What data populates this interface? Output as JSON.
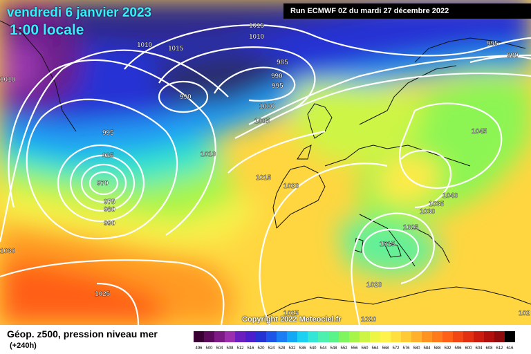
{
  "map": {
    "date_line": "vendredi 6 janvier 2023",
    "time_line": "1:00 locale",
    "run_label": "Run ECMWF 0Z du mardi 27 décembre 2022",
    "copyright": "Copyright 2022 Meteociel.fr",
    "legend_title": "Géop. z500, pression niveau mer",
    "legend_sub": "(+240h)",
    "scale_values": [
      "496",
      "500",
      "504",
      "508",
      "512",
      "516",
      "520",
      "524",
      "528",
      "532",
      "536",
      "540",
      "544",
      "548",
      "552",
      "556",
      "560",
      "564",
      "568",
      "572",
      "576",
      "580",
      "584",
      "588",
      "592",
      "596",
      "600",
      "604",
      "608",
      "612",
      "616"
    ],
    "scale_colors": [
      "#3a0035",
      "#5c0a5c",
      "#7e1a86",
      "#9b2fae",
      "#6b1fbf",
      "#4b1fcb",
      "#2633d4",
      "#1e55e8",
      "#1b7ef4",
      "#12a8f5",
      "#1bd0f0",
      "#35e6d6",
      "#4ef0b0",
      "#59f38a",
      "#7ff560",
      "#a7f548",
      "#cdf545",
      "#eef545",
      "#fff24a",
      "#ffe040",
      "#ffca36",
      "#ffb02c",
      "#ff9322",
      "#ff7a1a",
      "#ff6018",
      "#f24614",
      "#e13012",
      "#cc1c10",
      "#b10f0e",
      "#8e0a0c",
      "#000000"
    ],
    "isobar_labels": [
      {
        "text": "1015"
      },
      {
        "text": "1010"
      },
      {
        "text": "1010"
      },
      {
        "text": "1015"
      },
      {
        "text": "985"
      },
      {
        "text": "990"
      },
      {
        "text": "995"
      },
      {
        "text": "990"
      },
      {
        "text": "1000"
      },
      {
        "text": "1005"
      },
      {
        "text": "995"
      },
      {
        "text": "985"
      },
      {
        "text": "970"
      },
      {
        "text": "975"
      },
      {
        "text": "980"
      },
      {
        "text": "990"
      },
      {
        "text": "1010"
      },
      {
        "text": "1015"
      },
      {
        "text": "1020"
      },
      {
        "text": "1010"
      },
      {
        "text": "1030"
      },
      {
        "text": "1025"
      },
      {
        "text": "1025"
      },
      {
        "text": "1020"
      },
      {
        "text": "1020"
      },
      {
        "text": "1015"
      },
      {
        "text": "1025"
      },
      {
        "text": "1030"
      },
      {
        "text": "1035"
      },
      {
        "text": "1040"
      },
      {
        "text": "1045"
      },
      {
        "text": "995"
      },
      {
        "text": "990"
      },
      {
        "text": "102"
      }
    ]
  }
}
